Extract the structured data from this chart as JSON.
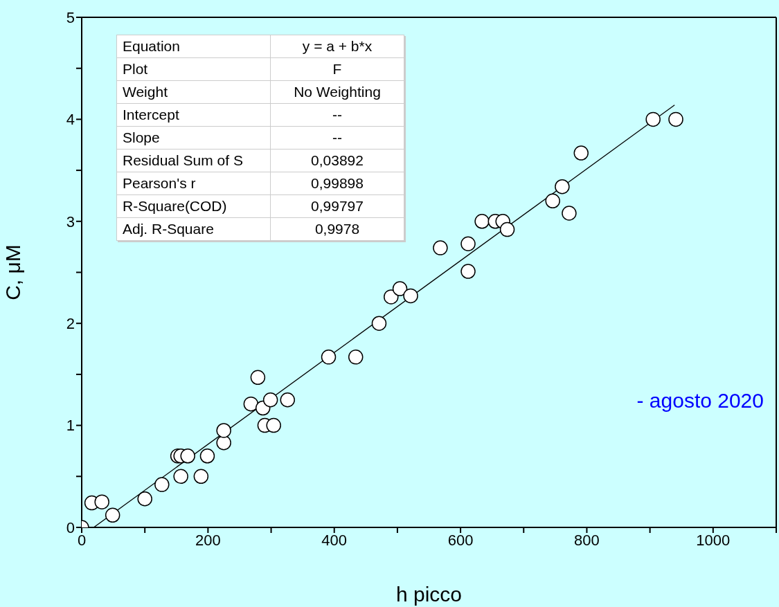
{
  "chart_data": {
    "type": "scatter",
    "xlabel": "h picco",
    "ylabel": "C, μM",
    "xlim": [
      0,
      1100
    ],
    "xticks": [
      0,
      {
        "value": 100,
        "label": null
      },
      200,
      {
        "value": 300,
        "label": null
      },
      400,
      {
        "value": 500,
        "label": null
      },
      600,
      {
        "value": 700,
        "label": null
      },
      800,
      {
        "value": 900,
        "label": null
      },
      1000,
      {
        "value": 1100,
        "label": null
      }
    ],
    "ylim": [
      0,
      5
    ],
    "yticks": [
      0,
      {
        "value": 0.5,
        "label": null
      },
      1,
      {
        "value": 1.5,
        "label": null
      },
      2,
      {
        "value": 2.5,
        "label": null
      },
      3,
      {
        "value": 3.5,
        "label": null
      },
      4,
      {
        "value": 4.5,
        "label": null
      },
      5
    ],
    "grid": false,
    "legend": false,
    "marker": "circle",
    "series": [
      {
        "color": "#ffffff",
        "x": [
          0,
          16,
          32,
          49,
          100,
          127,
          157,
          189,
          152,
          157,
          168,
          199,
          225,
          225,
          268,
          279,
          287,
          299,
          290,
          304,
          326,
          391,
          434,
          471,
          490,
          504,
          521,
          568,
          612,
          612,
          634,
          655,
          667,
          674,
          746,
          761,
          772,
          791,
          905,
          941
        ],
        "values": [
          0,
          0.24,
          0.25,
          0.12,
          0.28,
          0.42,
          0.5,
          0.5,
          0.7,
          0.7,
          0.7,
          0.7,
          0.83,
          0.95,
          1.21,
          1.47,
          1.17,
          1.25,
          1.0,
          1.0,
          1.25,
          1.67,
          1.67,
          2.0,
          2.26,
          2.34,
          2.27,
          2.74,
          2.78,
          2.51,
          3.0,
          3.0,
          3.0,
          2.92,
          3.2,
          3.34,
          3.08,
          3.67,
          4.0,
          4.0
        ]
      },
      {
        "type": "line",
        "color": "#000000",
        "line_style": "solid",
        "marker": "none",
        "x": [
          19,
          939
        ],
        "values": [
          0,
          4.14
        ]
      }
    ],
    "annotations": [
      "Equation",
      "y = a + b*x",
      "Plot",
      "F",
      "Weight",
      "No Weighting",
      "Intercept",
      "--",
      "Slope",
      "--",
      "Residual Sum of S",
      "0,03892",
      "Pearson's r",
      "0,99898",
      "R-Square(COD)",
      "0,99797",
      "Adj. R-Square",
      "0,9978",
      {
        "text": "- agosto 2020"
      }
    ]
  }
}
